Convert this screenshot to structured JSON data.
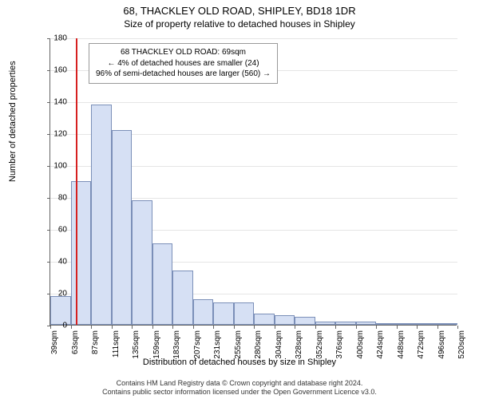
{
  "title_main": "68, THACKLEY OLD ROAD, SHIPLEY, BD18 1DR",
  "title_sub": "Size of property relative to detached houses in Shipley",
  "y_axis_label": "Number of detached properties",
  "x_axis_label": "Distribution of detached houses by size in Shipley",
  "chart": {
    "type": "histogram",
    "bar_fill": "#d6e0f4",
    "bar_border": "#7b8fb8",
    "grid_color": "#e5e5e5",
    "marker_color": "#d62020",
    "background": "#ffffff",
    "ylim": [
      0,
      180
    ],
    "ytick_step": 20,
    "y_ticks": [
      0,
      20,
      40,
      60,
      80,
      100,
      120,
      140,
      160,
      180
    ],
    "x_start": 39,
    "x_step": 24,
    "x_labels": [
      "39sqm",
      "63sqm",
      "87sqm",
      "111sqm",
      "135sqm",
      "159sqm",
      "183sqm",
      "207sqm",
      "231sqm",
      "255sqm",
      "280sqm",
      "304sqm",
      "328sqm",
      "352sqm",
      "376sqm",
      "400sqm",
      "424sqm",
      "448sqm",
      "472sqm",
      "496sqm",
      "520sqm"
    ],
    "values": [
      18,
      90,
      138,
      122,
      78,
      51,
      34,
      16,
      14,
      14,
      7,
      6,
      5,
      2,
      2,
      2,
      1,
      1,
      1,
      1
    ],
    "marker_x_value": 69
  },
  "info_box": {
    "line1": "68 THACKLEY OLD ROAD: 69sqm",
    "line2": "← 4% of detached houses are smaller (24)",
    "line3": "96% of semi-detached houses are larger (560) →"
  },
  "copyright": {
    "line1": "Contains HM Land Registry data © Crown copyright and database right 2024.",
    "line2": "Contains public sector information licensed under the Open Government Licence v3.0."
  }
}
